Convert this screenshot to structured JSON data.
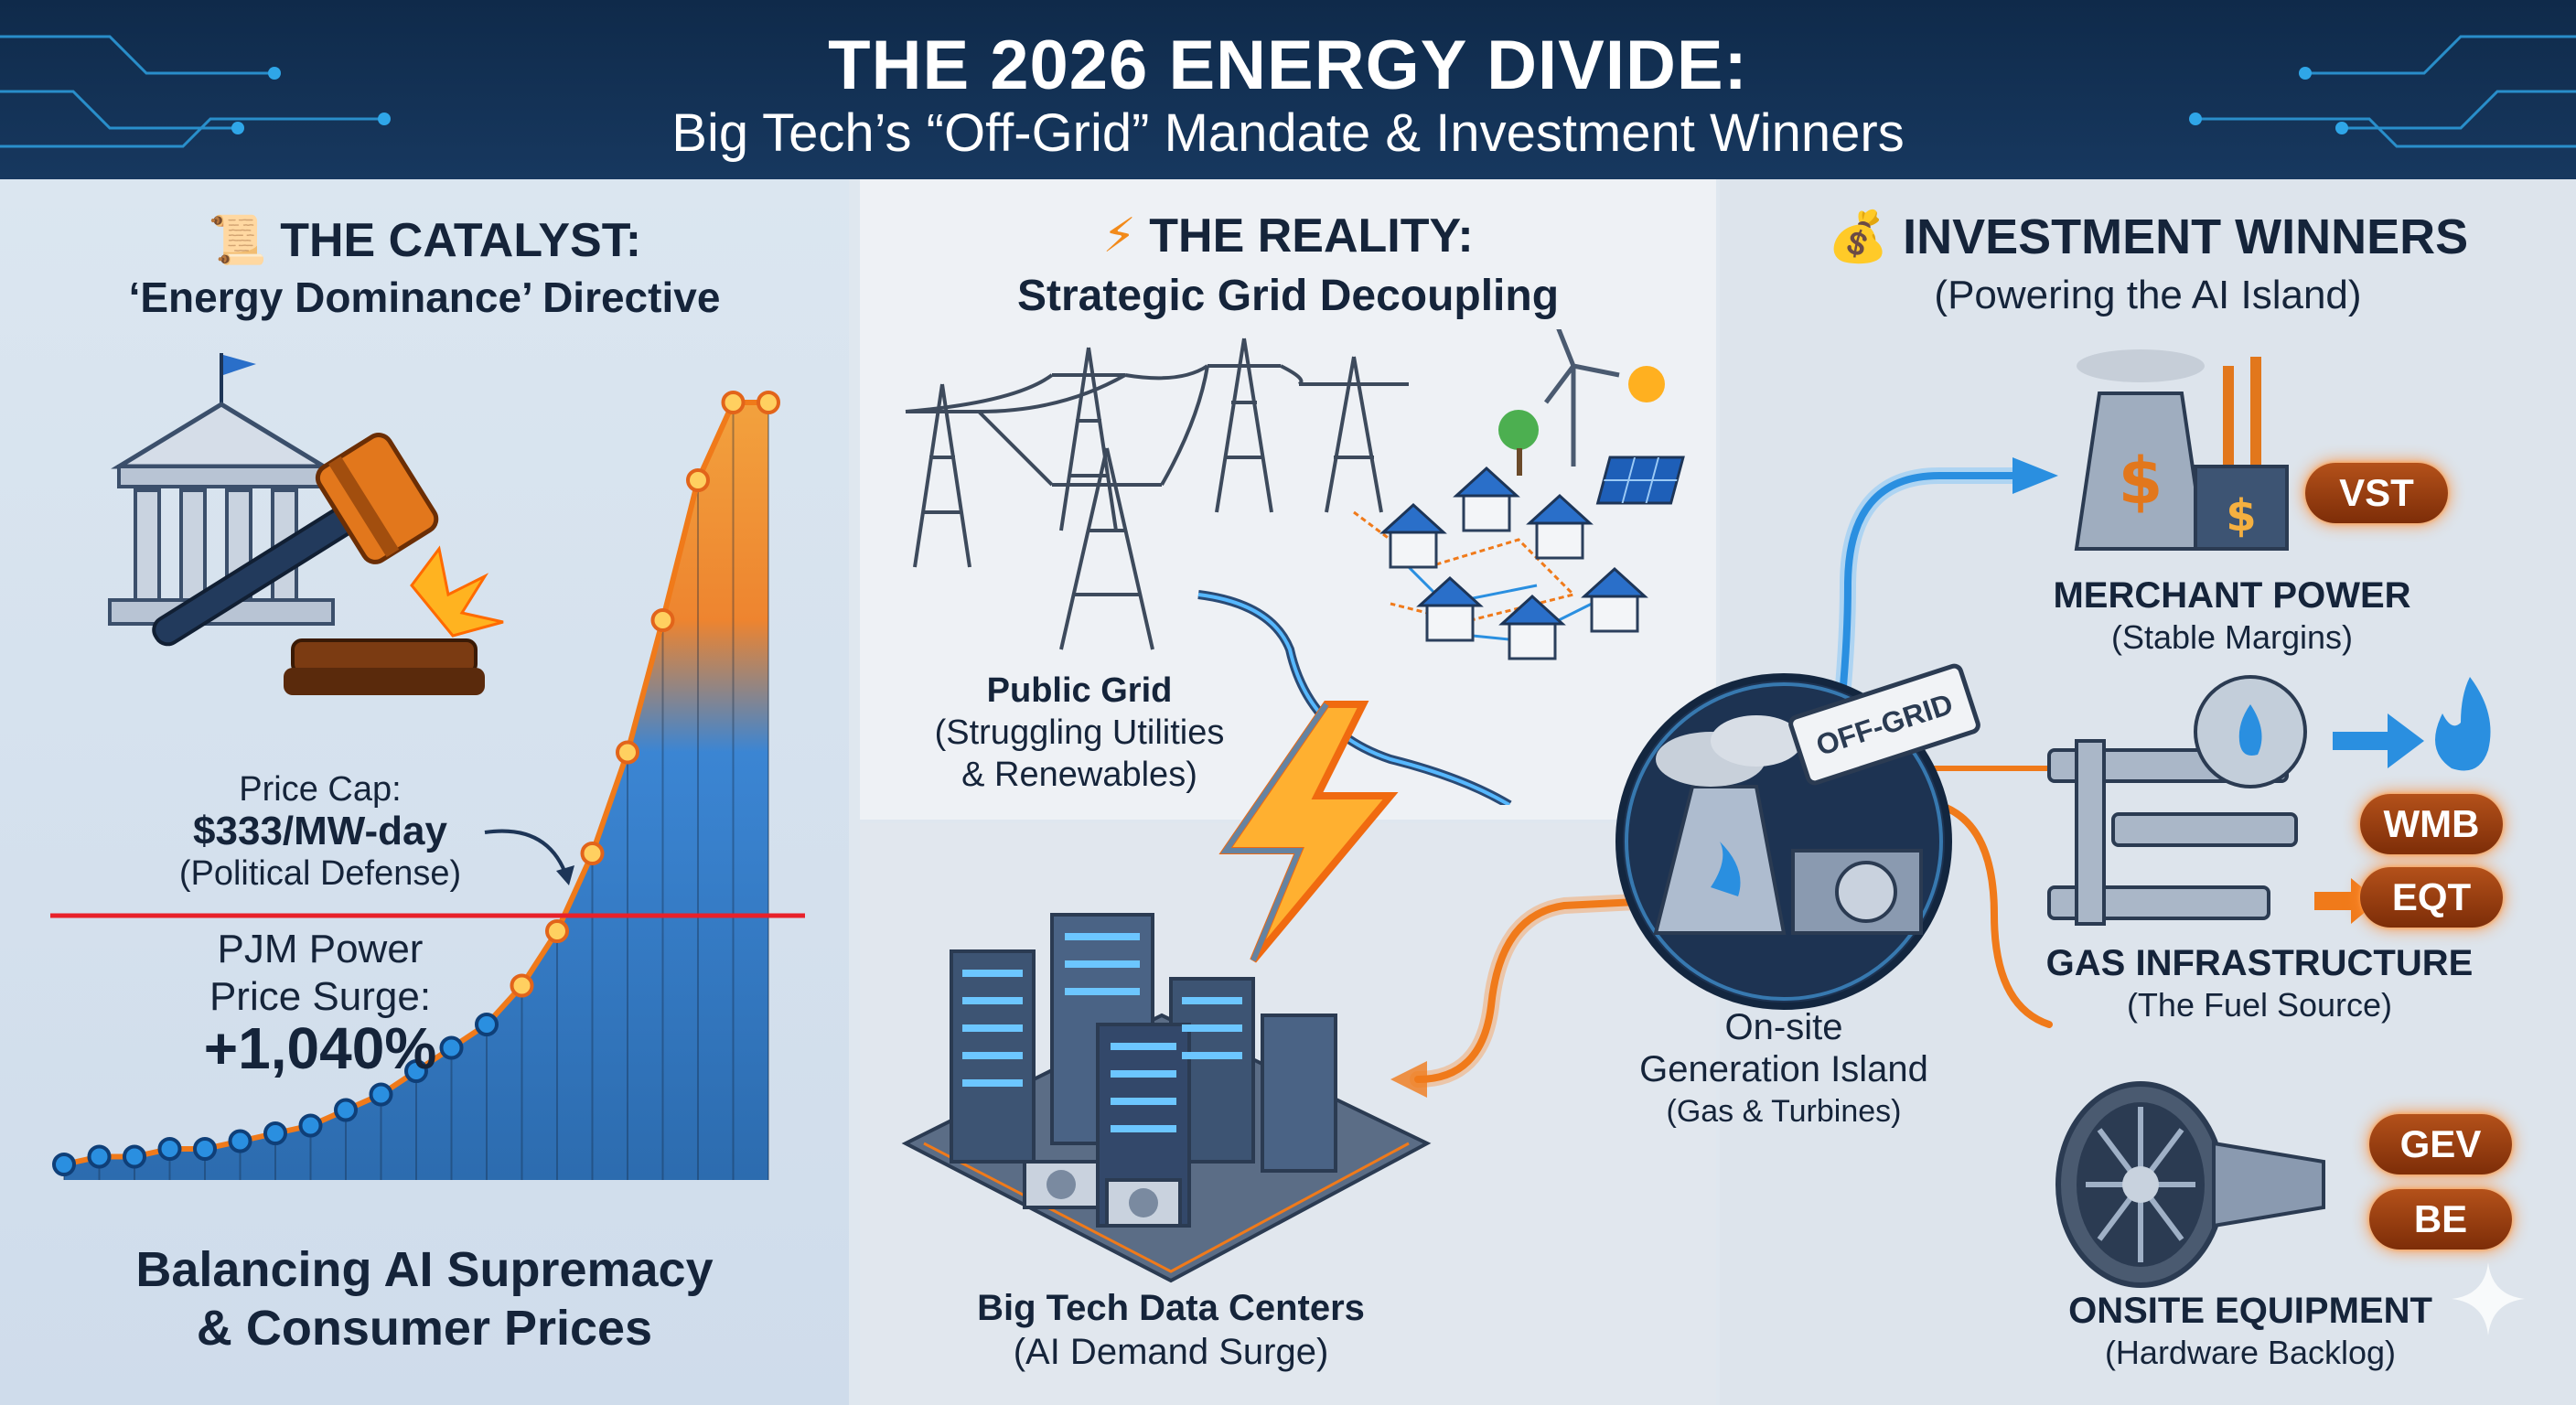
{
  "header": {
    "title": "THE 2026 ENERGY DIVIDE:",
    "subtitle": "Big Tech’s “Off-Grid” Mandate & Investment Winners"
  },
  "catalyst": {
    "icon": "scroll-icon",
    "title": "THE CATALYST:",
    "subtitle": "‘Energy Dominance’ Directive",
    "price_cap_line1": "Price Cap:",
    "price_cap_line2": "$333/MW-day",
    "price_cap_note": "(Political Defense)",
    "surge_line1": "PJM Power",
    "surge_line2": "Price Surge:",
    "surge_value": "+1,040%",
    "footer_line1": "Balancing AI Supremacy",
    "footer_line2": "& Consumer Prices"
  },
  "reality": {
    "icon": "lightning-icon",
    "title": "THE REALITY:",
    "subtitle": "Strategic Grid Decoupling",
    "public_grid_title": "Public Grid",
    "public_grid_note1": "(Struggling Utilities",
    "public_grid_note2": "& Renewables)",
    "datacenters_title": "Big Tech Data Centers",
    "datacenters_note": "(AI Demand Surge)",
    "offgrid_stamp": "OFF-GRID",
    "island_line1": "On-site",
    "island_line2": "Generation Island",
    "island_note": "(Gas & Turbines)"
  },
  "winners": {
    "icon": "money-bag-icon",
    "title": "INVESTMENT WINNERS",
    "subtitle": "(Powering the AI Island)",
    "merchant": {
      "title": "MERCHANT POWER",
      "note": "(Stable Margins)",
      "tickers": [
        "VST"
      ]
    },
    "gas": {
      "title": "GAS INFRASTRUCTURE",
      "note": "(The Fuel Source)",
      "tickers": [
        "WMB",
        "EQT"
      ]
    },
    "equipment": {
      "title": "ONSITE EQUIPMENT",
      "note": "(Hardware Backlog)",
      "tickers": [
        "GEV",
        "BE"
      ]
    }
  },
  "chart_data": {
    "type": "area",
    "title": "",
    "xlabel": "",
    "ylabel": "",
    "threshold_label": "Price Cap: $333/MW-day",
    "series": [
      {
        "values": [
          2,
          3,
          3,
          4,
          4,
          5,
          6,
          7,
          9,
          11,
          14,
          17,
          20,
          25,
          32,
          42,
          55,
          72,
          90,
          100,
          100
        ]
      }
    ],
    "ylim": [
      0,
      100
    ],
    "grid": false,
    "colors": {
      "low": "#1a5fa8",
      "high": "#f07a1a",
      "cap": "#e8212a"
    }
  },
  "colors": {
    "accent_orange": "#f07a1a",
    "accent_blue": "#2a8fe0",
    "dark_navy": "#13263f"
  }
}
